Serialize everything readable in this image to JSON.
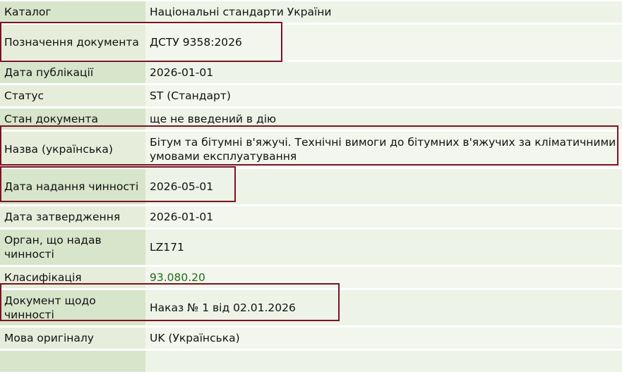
{
  "rows": [
    {
      "label": "Каталог",
      "value": "Національні стандарти України"
    },
    {
      "label": "Позначення документа",
      "value": "ДСТУ 9358:2026",
      "highlighted": true
    },
    {
      "label": "Дата публікації",
      "value": "2026-01-01"
    },
    {
      "label": "Статус",
      "value": "ST (Стандарт)"
    },
    {
      "label": "Стан документа",
      "value": "ще не введений в дію"
    },
    {
      "label": "Назва (українська)",
      "value": "Бітум та бітумні в'яжучі. Технічні вимоги до бітумних в'яжучих за кліматичними умовами експлуатування",
      "highlighted": true
    },
    {
      "label": "Дата надання чинності",
      "value": "2026-05-01",
      "highlighted": true
    },
    {
      "label": "Дата затвердження",
      "value": "2026-01-01"
    },
    {
      "label": "Орган, що надав чинності",
      "value": "LZ171"
    },
    {
      "label": "Класифікація",
      "value": "93.080.20",
      "link": true
    },
    {
      "label": "Документ щодо чинності",
      "value": "Наказ № 1 від 02.01.2026",
      "highlighted": true
    },
    {
      "label": "Мова оригіналу",
      "value": "UK (Українська)"
    },
    {
      "label": "",
      "value": ""
    }
  ],
  "colors": {
    "highlight_border": "#7a1424",
    "link": "#1d6b1d",
    "label_bg": "#d7e5cb",
    "value_bg": "#edf3e6"
  }
}
